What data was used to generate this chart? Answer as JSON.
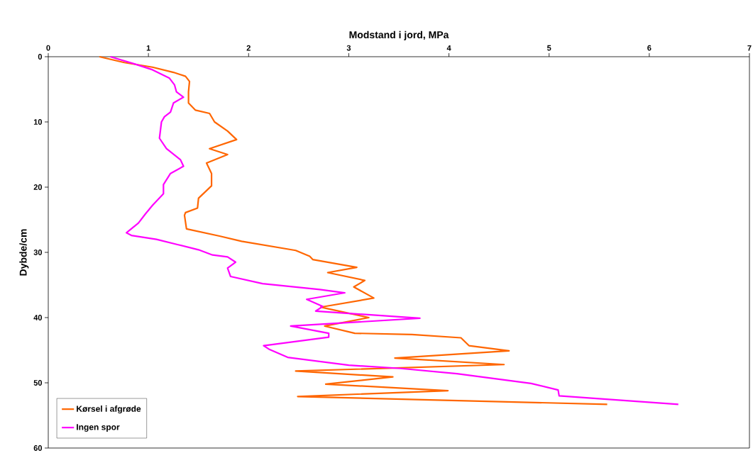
{
  "chart_data": {
    "type": "line",
    "xlabel": "Modstand i jord, MPa",
    "ylabel": "Dybde/cm",
    "xlim": [
      0,
      7
    ],
    "xticks": [
      0,
      1,
      2,
      3,
      4,
      5,
      6,
      7
    ],
    "ylim": [
      60,
      0
    ],
    "yticks": [
      0,
      10,
      20,
      30,
      40,
      50,
      60
    ],
    "grid": false,
    "legend": "bottom left",
    "marker": "none",
    "line_style": "solid",
    "series": [
      {
        "name": "Kørsel i afgrøde",
        "color": "#ff6600",
        "x": [
          0.51,
          0.76,
          1.04,
          1.25,
          1.37,
          1.41,
          1.4,
          1.4,
          1.47,
          1.61,
          1.66,
          1.79,
          1.88,
          1.61,
          1.79,
          1.58,
          1.63,
          1.63,
          1.5,
          1.49,
          1.37,
          1.36,
          1.38,
          1.71,
          1.93,
          2.47,
          2.61,
          2.64,
          3.08,
          2.79,
          3.16,
          3.05,
          3.25,
          2.72,
          2.78,
          3.2,
          2.76,
          3.06,
          3.63,
          4.12,
          4.2,
          4.6,
          3.46,
          4.55,
          2.47,
          3.44,
          2.77,
          3.99,
          2.49,
          5.58
        ],
        "values": [
          0,
          0.9,
          1.6,
          2.4,
          3.0,
          3.8,
          5.4,
          7.1,
          8.2,
          8.7,
          10.0,
          11.4,
          12.7,
          14.1,
          15.0,
          16.3,
          17.9,
          19.8,
          21.7,
          23.2,
          23.9,
          24.3,
          26.4,
          27.5,
          28.3,
          29.7,
          30.6,
          31.1,
          32.3,
          33.1,
          34.3,
          35.3,
          37.0,
          38.4,
          38.6,
          40.0,
          41.3,
          42.4,
          42.6,
          43.1,
          44.3,
          45.1,
          46.2,
          47.2,
          48.2,
          49.1,
          50.2,
          51.2,
          52.1,
          53.3
        ]
      },
      {
        "name": "Ingen spor",
        "color": "#ff00ff",
        "x": [
          0.62,
          0.86,
          1.04,
          1.21,
          1.26,
          1.28,
          1.35,
          1.25,
          1.22,
          1.16,
          1.13,
          1.11,
          1.18,
          1.32,
          1.35,
          1.22,
          1.15,
          1.15,
          1.04,
          0.97,
          0.9,
          0.78,
          0.83,
          1.08,
          1.29,
          1.5,
          1.64,
          1.79,
          1.87,
          1.79,
          1.82,
          2.14,
          2.71,
          2.96,
          2.58,
          2.74,
          2.67,
          3.71,
          2.42,
          2.8,
          2.8,
          2.15,
          2.21,
          2.39,
          3.0,
          3.52,
          4.08,
          4.82,
          5.09,
          5.1,
          6.29
        ],
        "values": [
          0,
          1.1,
          2.0,
          3.3,
          4.3,
          5.4,
          6.2,
          7.1,
          8.5,
          9.2,
          10.0,
          12.5,
          14.1,
          15.8,
          16.8,
          17.9,
          19.6,
          21.0,
          22.8,
          24.1,
          25.5,
          27.0,
          27.4,
          28.0,
          28.8,
          29.6,
          30.4,
          30.7,
          31.5,
          32.4,
          33.7,
          34.8,
          35.7,
          36.2,
          37.2,
          38.3,
          39.0,
          40.1,
          41.3,
          42.4,
          43.0,
          44.3,
          44.9,
          46.1,
          47.3,
          47.8,
          48.6,
          50.1,
          51.1,
          52.0,
          53.3
        ]
      }
    ]
  }
}
